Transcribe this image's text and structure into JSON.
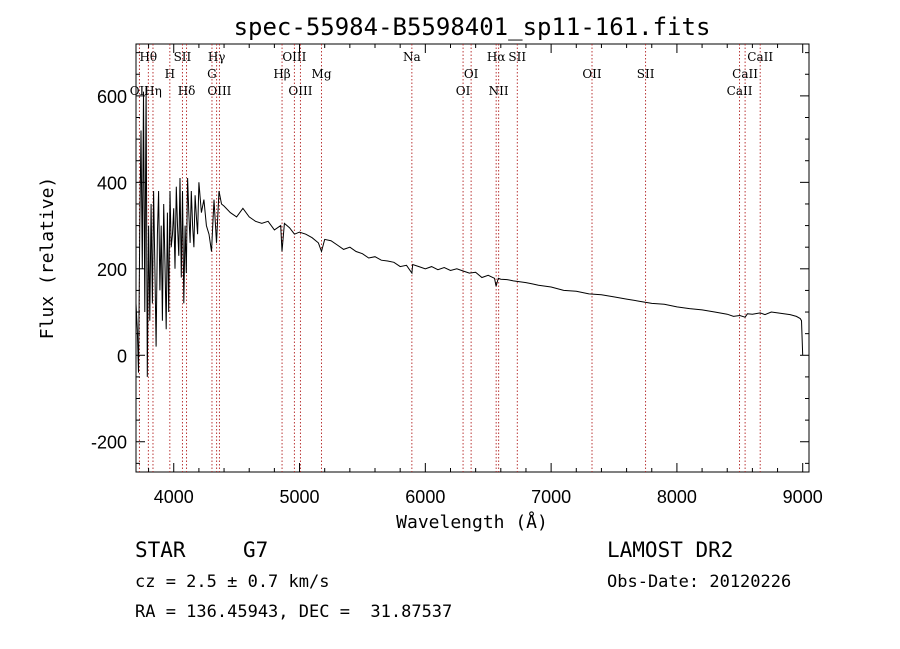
{
  "chart_data": {
    "type": "line",
    "title": "spec-55984-B5598401_sp11-161.fits",
    "xlabel": "Wavelength (Å)",
    "ylabel": "Flux (relative)",
    "xlim": [
      3700,
      9050
    ],
    "ylim": [
      -270,
      720
    ],
    "xticks": [
      4000,
      5000,
      6000,
      7000,
      8000,
      9000
    ],
    "yticks": [
      -200,
      0,
      200,
      400,
      600
    ],
    "series": [
      {
        "name": "flux",
        "color": "#000000",
        "x": [
          3700,
          3710,
          3720,
          3730,
          3740,
          3750,
          3760,
          3770,
          3780,
          3790,
          3800,
          3810,
          3820,
          3830,
          3840,
          3850,
          3860,
          3870,
          3880,
          3890,
          3900,
          3910,
          3920,
          3930,
          3940,
          3950,
          3960,
          3970,
          3980,
          3990,
          4000,
          4010,
          4020,
          4030,
          4040,
          4050,
          4060,
          4070,
          4080,
          4090,
          4100,
          4110,
          4120,
          4130,
          4140,
          4150,
          4160,
          4170,
          4180,
          4190,
          4200,
          4220,
          4240,
          4260,
          4280,
          4300,
          4320,
          4340,
          4360,
          4380,
          4400,
          4450,
          4500,
          4550,
          4600,
          4650,
          4700,
          4750,
          4800,
          4850,
          4861,
          4880,
          4920,
          4960,
          5000,
          5050,
          5100,
          5150,
          5175,
          5200,
          5250,
          5300,
          5350,
          5400,
          5450,
          5500,
          5550,
          5600,
          5650,
          5700,
          5750,
          5800,
          5850,
          5893,
          5900,
          5950,
          6000,
          6050,
          6100,
          6150,
          6200,
          6250,
          6300,
          6350,
          6400,
          6450,
          6500,
          6550,
          6563,
          6580,
          6600,
          6650,
          6700,
          6750,
          6800,
          6850,
          6900,
          6950,
          7000,
          7100,
          7200,
          7300,
          7400,
          7500,
          7600,
          7700,
          7800,
          7900,
          8000,
          8100,
          8200,
          8300,
          8400,
          8450,
          8500,
          8542,
          8560,
          8600,
          8662,
          8700,
          8750,
          8800,
          8850,
          8900,
          8950,
          8980,
          8990,
          9000
        ],
        "y": [
          120,
          60,
          -40,
          300,
          520,
          200,
          610,
          100,
          620,
          -50,
          300,
          80,
          350,
          120,
          380,
          200,
          20,
          280,
          380,
          150,
          300,
          80,
          350,
          220,
          60,
          330,
          100,
          380,
          250,
          280,
          340,
          200,
          390,
          300,
          230,
          410,
          180,
          380,
          120,
          300,
          190,
          410,
          330,
          260,
          380,
          300,
          250,
          370,
          320,
          280,
          400,
          330,
          360,
          300,
          280,
          240,
          360,
          260,
          380,
          350,
          345,
          330,
          320,
          340,
          320,
          310,
          305,
          310,
          290,
          300,
          240,
          305,
          295,
          280,
          285,
          280,
          272,
          260,
          240,
          268,
          265,
          255,
          245,
          250,
          240,
          235,
          225,
          228,
          220,
          218,
          215,
          205,
          208,
          190,
          210,
          205,
          200,
          205,
          198,
          203,
          196,
          200,
          195,
          190,
          192,
          180,
          185,
          178,
          160,
          178,
          176,
          175,
          172,
          170,
          168,
          165,
          162,
          160,
          158,
          150,
          148,
          142,
          140,
          135,
          130,
          125,
          120,
          118,
          112,
          108,
          105,
          100,
          95,
          90,
          92,
          88,
          96,
          95,
          98,
          94,
          100,
          98,
          96,
          94,
          90,
          85,
          80,
          0
        ]
      }
    ],
    "line_markers": [
      {
        "label": "Hθ",
        "x": 3798,
        "tier": 1
      },
      {
        "label": "OII",
        "x": 3727,
        "tier": 3
      },
      {
        "label": "Hη",
        "x": 3835,
        "tier": 3
      },
      {
        "label": "SII",
        "x": 4069,
        "tier": 1
      },
      {
        "label": "H",
        "x": 3969,
        "tier": 2
      },
      {
        "label": "Hδ",
        "x": 4102,
        "tier": 3
      },
      {
        "label": "Hγ",
        "x": 4341,
        "tier": 1
      },
      {
        "label": "G",
        "x": 4304,
        "tier": 2
      },
      {
        "label": "OIII",
        "x": 4363,
        "tier": 3
      },
      {
        "label": "OIII",
        "x": 4959,
        "tier": 1
      },
      {
        "label": "Hβ",
        "x": 4861,
        "tier": 2
      },
      {
        "label": "OIII",
        "x": 5007,
        "tier": 3
      },
      {
        "label": "Mg",
        "x": 5175,
        "tier": 2
      },
      {
        "label": "Na",
        "x": 5893,
        "tier": 1
      },
      {
        "label": "OI",
        "x": 6364,
        "tier": 2
      },
      {
        "label": "OI",
        "x": 6300,
        "tier": 3
      },
      {
        "label": "Hα",
        "x": 6563,
        "tier": 1
      },
      {
        "label": "SII",
        "x": 6731,
        "tier": 1
      },
      {
        "label": "NII",
        "x": 6583,
        "tier": 3
      },
      {
        "label": "OII",
        "x": 7325,
        "tier": 2
      },
      {
        "label": "SII",
        "x": 7751,
        "tier": 2
      },
      {
        "label": "CaII",
        "x": 8662,
        "tier": 1
      },
      {
        "label": "CaII",
        "x": 8542,
        "tier": 2
      },
      {
        "label": "CaII",
        "x": 8498,
        "tier": 3
      }
    ]
  },
  "info": {
    "object_class": "STAR",
    "subclass": "G7",
    "cz": "cz = 2.5 ± 0.7 km/s",
    "radec": "RA = 136.45943, DEC =  31.87537",
    "survey": "LAMOST DR2",
    "obs_date": "Obs-Date: 20120226"
  }
}
